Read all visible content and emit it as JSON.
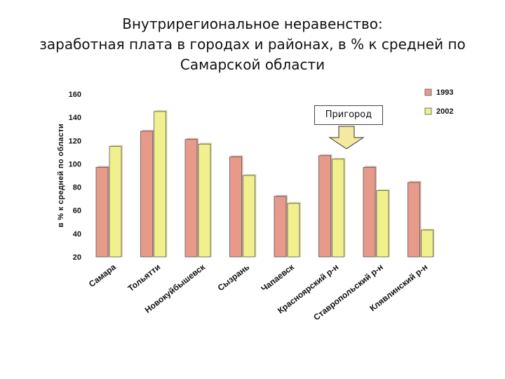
{
  "title": {
    "line1": "Внутрирегиональное неравенство:",
    "line2": "заработная плата в городах и районах, в % к средней по",
    "line3": "Самарской области"
  },
  "annotation": "Пригород",
  "colors": {
    "s1993": "#e89a8a",
    "s2002": "#f0f08c",
    "s1993_dark": "#b8705f",
    "s2002_dark": "#b9b955",
    "arrow": "#f5e8a0"
  },
  "chart_data": {
    "type": "bar",
    "title": "Внутрирегиональное неравенство: заработная плата в городах и районах, в % к средней по Самарской области",
    "ylabel": "в % к средней по области",
    "xlabel": "",
    "ylim": [
      20,
      160
    ],
    "yticks": [
      20,
      40,
      60,
      80,
      100,
      120,
      140,
      160
    ],
    "grid": false,
    "legend_position": "top-right",
    "categories": [
      "Самара",
      "Тольятти",
      "Новокуйбышевск",
      "Сызрань",
      "Чапаевск",
      "Красноярский р-н",
      "Ставропольский р-н",
      "Клявлинский р-н"
    ],
    "series": [
      {
        "name": "1993",
        "values": [
          97,
          128,
          121,
          106,
          72,
          107,
          97,
          84
        ]
      },
      {
        "name": "2002",
        "values": [
          115,
          145,
          117,
          90,
          66,
          104,
          77,
          43
        ]
      }
    ]
  }
}
